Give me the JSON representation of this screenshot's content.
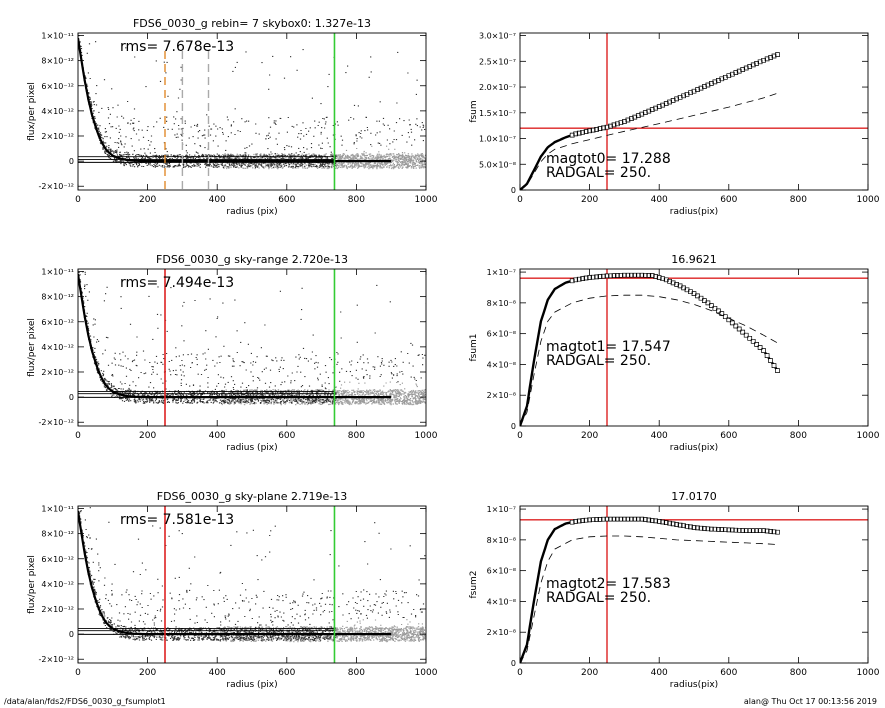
{
  "chart_data": [
    {
      "type": "scatter",
      "title": "FDS6_0030_g rebin= 7    skybox0:  1.327e-13",
      "xlabel": "radius (pix)",
      "ylabel": "flux/per pixel",
      "annotation": "rms= 7.678e-13",
      "xlim": [
        0,
        1000
      ],
      "ylim": [
        -2.3e-12,
        1.02e-11
      ],
      "xticks": [
        "0",
        "200",
        "400",
        "600",
        "800",
        "1000"
      ],
      "yticks": [
        {
          "v": -2e-12,
          "label": "-2×10⁻¹²"
        },
        {
          "v": 0,
          "label": "0"
        },
        {
          "v": 2e-12,
          "label": "2×10⁻¹²"
        },
        {
          "v": 4e-12,
          "label": "4×10⁻¹²"
        },
        {
          "v": 6e-12,
          "label": "6×10⁻¹²"
        },
        {
          "v": 8e-12,
          "label": "8×10⁻¹²"
        },
        {
          "v": 1e-11,
          "label": "1×10⁻¹¹"
        }
      ],
      "hlines": [
        1.327e-13,
        3.5e-13,
        -1e-13
      ],
      "vlines": [
        {
          "x": 250,
          "color": "#e08a2c",
          "style": "dash"
        },
        {
          "x": 300,
          "color": "#aaaaaa",
          "style": "dash"
        },
        {
          "x": 375,
          "color": "#aaaaaa",
          "style": "dash"
        },
        {
          "x": 737,
          "color": "#33cc33",
          "style": "solid"
        }
      ],
      "profile": {
        "x": [
          0,
          10,
          20,
          30,
          40,
          50,
          60,
          70,
          80,
          90,
          100,
          120,
          140,
          160,
          200,
          300,
          400,
          600,
          740,
          900
        ],
        "y": [
          9.8e-12,
          8e-12,
          6.3e-12,
          4.9e-12,
          3.7e-12,
          2.8e-12,
          2e-12,
          1.4e-12,
          9.5e-13,
          6.5e-13,
          4.3e-13,
          2.1e-13,
          9e-14,
          3e-14,
          0,
          0,
          0,
          0,
          0,
          0
        ]
      },
      "scatter_xmax": 1000,
      "gray_from": 740
    },
    {
      "type": "scatter",
      "title": "FDS6_0030_g sky-range  2.720e-13",
      "xlabel": "radius (pix)",
      "ylabel": "flux/per pixel",
      "annotation": "rms= 7.494e-13",
      "xlim": [
        0,
        1000
      ],
      "ylim": [
        -2.3e-12,
        1.02e-11
      ],
      "xticks": [
        "0",
        "200",
        "400",
        "600",
        "800",
        "1000"
      ],
      "yticks": [
        {
          "v": -2e-12,
          "label": "-2×10⁻¹²"
        },
        {
          "v": 0,
          "label": "0"
        },
        {
          "v": 2e-12,
          "label": "2×10⁻¹²"
        },
        {
          "v": 4e-12,
          "label": "4×10⁻¹²"
        },
        {
          "v": 6e-12,
          "label": "6×10⁻¹²"
        },
        {
          "v": 8e-12,
          "label": "8×10⁻¹²"
        },
        {
          "v": 1e-11,
          "label": "1×10⁻¹¹"
        }
      ],
      "hlines": [
        2.72e-13,
        4.5e-13,
        -2e-14
      ],
      "vlines": [
        {
          "x": 250,
          "color": "#dd2222",
          "style": "solid"
        },
        {
          "x": 737,
          "color": "#33cc33",
          "style": "solid"
        }
      ],
      "profile": {
        "x": [
          0,
          10,
          20,
          30,
          40,
          50,
          60,
          70,
          80,
          90,
          100,
          120,
          140,
          160,
          200,
          300,
          400,
          600,
          740,
          900
        ],
        "y": [
          9.8e-12,
          8e-12,
          6.3e-12,
          4.9e-12,
          3.7e-12,
          2.8e-12,
          2e-12,
          1.4e-12,
          9.5e-13,
          6.5e-13,
          4.3e-13,
          2.1e-13,
          9e-14,
          3e-14,
          0,
          0,
          0,
          0,
          0,
          0
        ]
      },
      "scatter_xmax": 1000,
      "gray_from": 740
    },
    {
      "type": "scatter",
      "title": "FDS6_0030_g sky-plane  2.719e-13",
      "xlabel": "radius (pix)",
      "ylabel": "flux/per pixel",
      "annotation": "rms= 7.581e-13",
      "xlim": [
        0,
        1000
      ],
      "ylim": [
        -2.3e-12,
        1.02e-11
      ],
      "xticks": [
        "0",
        "200",
        "400",
        "600",
        "800",
        "1000"
      ],
      "yticks": [
        {
          "v": -2e-12,
          "label": "-2×10⁻¹²"
        },
        {
          "v": 0,
          "label": "0"
        },
        {
          "v": 2e-12,
          "label": "2×10⁻¹²"
        },
        {
          "v": 4e-12,
          "label": "4×10⁻¹²"
        },
        {
          "v": 6e-12,
          "label": "6×10⁻¹²"
        },
        {
          "v": 8e-12,
          "label": "8×10⁻¹²"
        },
        {
          "v": 1e-11,
          "label": "1×10⁻¹¹"
        }
      ],
      "hlines": [
        2.719e-13,
        4.5e-13,
        -2e-14
      ],
      "vlines": [
        {
          "x": 250,
          "color": "#dd2222",
          "style": "solid"
        },
        {
          "x": 737,
          "color": "#33cc33",
          "style": "solid"
        }
      ],
      "profile": {
        "x": [
          0,
          10,
          20,
          30,
          40,
          50,
          60,
          70,
          80,
          90,
          100,
          120,
          140,
          160,
          200,
          300,
          400,
          600,
          740,
          900
        ],
        "y": [
          9.8e-12,
          8e-12,
          6.3e-12,
          4.9e-12,
          3.7e-12,
          2.8e-12,
          2e-12,
          1.4e-12,
          9.5e-13,
          6.5e-13,
          4.3e-13,
          2.1e-13,
          9e-14,
          3e-14,
          0,
          0,
          0,
          0,
          0,
          0
        ]
      },
      "scatter_xmax": 1000,
      "gray_from": 740
    },
    {
      "type": "line",
      "title": "",
      "xlabel": "radius(pix)",
      "ylabel": "fsum",
      "annotation_lines": [
        "magtot0=  17.288",
        "RADGAL=    250."
      ],
      "xlim": [
        0,
        1000
      ],
      "ylim": [
        0,
        3.05e-07
      ],
      "xticks": [
        "0",
        "200",
        "400",
        "600",
        "800",
        "1000"
      ],
      "yticks": [
        {
          "v": 0,
          "label": "0"
        },
        {
          "v": 5e-08,
          "label": "5.0×10⁻⁸"
        },
        {
          "v": 1e-07,
          "label": "1.0×10⁻⁷"
        },
        {
          "v": 1.5e-07,
          "label": "1.5×10⁻⁷"
        },
        {
          "v": 2e-07,
          "label": "2.0×10⁻⁷"
        },
        {
          "v": 2.5e-07,
          "label": "2.5×10⁻⁷"
        },
        {
          "v": 3e-07,
          "label": "3.0×10⁻⁷"
        }
      ],
      "hline": 1.2e-07,
      "vline": 250,
      "series": [
        {
          "style": "squares",
          "x": [
            0,
            20,
            40,
            60,
            80,
            100,
            130,
            160,
            200,
            250,
            300,
            400,
            500,
            600,
            700,
            740
          ],
          "y": [
            0,
            1.2e-08,
            3.8e-08,
            6.5e-08,
            8.3e-08,
            9.3e-08,
            1.02e-07,
            1.09e-07,
            1.15e-07,
            1.22e-07,
            1.33e-07,
            1.62e-07,
            1.92e-07,
            2.22e-07,
            2.52e-07,
            2.63e-07
          ]
        },
        {
          "style": "dash",
          "x": [
            0,
            20,
            40,
            60,
            80,
            100,
            150,
            200,
            250,
            300,
            400,
            500,
            600,
            700,
            740
          ],
          "y": [
            0,
            1e-08,
            3.2e-08,
            5.5e-08,
            7e-08,
            7.9e-08,
            9e-08,
            9.8e-08,
            1.06e-07,
            1.14e-07,
            1.29e-07,
            1.45e-07,
            1.61e-07,
            1.79e-07,
            1.88e-07
          ]
        }
      ]
    },
    {
      "type": "line",
      "title": "16.9621",
      "xlabel": "radius(pix)",
      "ylabel": "fsum1",
      "annotation_lines": [
        "magtot1=  17.547",
        "RADGAL=    250."
      ],
      "xlim": [
        0,
        1000
      ],
      "ylim": [
        0,
        1.02e-07
      ],
      "xticks": [
        "0",
        "200",
        "400",
        "600",
        "800",
        "1000"
      ],
      "yticks": [
        {
          "v": 0,
          "label": "0"
        },
        {
          "v": 2e-08,
          "label": "2×10⁻⁸"
        },
        {
          "v": 4e-08,
          "label": "4×10⁻⁸"
        },
        {
          "v": 6e-08,
          "label": "6×10⁻⁸"
        },
        {
          "v": 8e-08,
          "label": "8×10⁻⁸"
        },
        {
          "v": 1e-07,
          "label": "1×10⁻⁷"
        }
      ],
      "hline": 9.6e-08,
      "vline": 250,
      "series": [
        {
          "style": "squares",
          "x": [
            0,
            20,
            40,
            60,
            80,
            100,
            130,
            160,
            200,
            250,
            300,
            350,
            380,
            420,
            460,
            500,
            540,
            580,
            620,
            660,
            700,
            740
          ],
          "y": [
            0,
            1.3e-08,
            4.2e-08,
            6.8e-08,
            8.2e-08,
            8.9e-08,
            9.3e-08,
            9.5e-08,
            9.65e-08,
            9.75e-08,
            9.8e-08,
            9.8e-08,
            9.78e-08,
            9.5e-08,
            9.1e-08,
            8.6e-08,
            8e-08,
            7.3e-08,
            6.5e-08,
            5.7e-08,
            4.9e-08,
            3.6e-08
          ]
        },
        {
          "style": "dash",
          "x": [
            0,
            20,
            40,
            60,
            80,
            100,
            150,
            200,
            250,
            300,
            350,
            400,
            450,
            500,
            550,
            600,
            650,
            700,
            740
          ],
          "y": [
            0,
            9e-09,
            3.3e-08,
            5.5e-08,
            6.8e-08,
            7.4e-08,
            8e-08,
            8.3e-08,
            8.45e-08,
            8.5e-08,
            8.5e-08,
            8.4e-08,
            8.2e-08,
            7.9e-08,
            7.5e-08,
            7e-08,
            6.5e-08,
            5.9e-08,
            5.4e-08
          ]
        }
      ]
    },
    {
      "type": "line",
      "title": "17.0170",
      "xlabel": "radius(pix)",
      "ylabel": "fsum2",
      "annotation_lines": [
        "magtot2=  17.583",
        "RADGAL=    250."
      ],
      "xlim": [
        0,
        1000
      ],
      "ylim": [
        0,
        1.02e-07
      ],
      "xticks": [
        "0",
        "200",
        "400",
        "600",
        "800",
        "1000"
      ],
      "yticks": [
        {
          "v": 0,
          "label": "0"
        },
        {
          "v": 2e-08,
          "label": "2×10⁻⁸"
        },
        {
          "v": 4e-08,
          "label": "4×10⁻⁸"
        },
        {
          "v": 6e-08,
          "label": "6×10⁻⁸"
        },
        {
          "v": 8e-08,
          "label": "8×10⁻⁸"
        },
        {
          "v": 1e-07,
          "label": "1×10⁻⁷"
        }
      ],
      "hline": 9.3e-08,
      "vline": 250,
      "series": [
        {
          "style": "squares",
          "x": [
            0,
            20,
            40,
            60,
            80,
            100,
            130,
            160,
            200,
            250,
            300,
            350,
            400,
            450,
            500,
            550,
            600,
            650,
            700,
            740
          ],
          "y": [
            0,
            1.2e-08,
            4e-08,
            6.6e-08,
            8e-08,
            8.7e-08,
            9.05e-08,
            9.2e-08,
            9.3e-08,
            9.35e-08,
            9.35e-08,
            9.35e-08,
            9.2e-08,
            9e-08,
            8.8e-08,
            8.7e-08,
            8.65e-08,
            8.6e-08,
            8.6e-08,
            8.5e-08
          ]
        },
        {
          "style": "dash",
          "x": [
            0,
            20,
            40,
            60,
            80,
            100,
            150,
            200,
            250,
            300,
            350,
            400,
            450,
            500,
            550,
            600,
            650,
            700,
            740
          ],
          "y": [
            0,
            8e-09,
            3e-08,
            5.2e-08,
            6.6e-08,
            7.4e-08,
            8e-08,
            8.2e-08,
            8.25e-08,
            8.25e-08,
            8.2e-08,
            8.1e-08,
            8e-08,
            7.95e-08,
            7.9e-08,
            7.85e-08,
            7.8e-08,
            7.75e-08,
            7.7e-08
          ]
        }
      ]
    }
  ],
  "footer": {
    "left": "/data/alan/fds2/FDS6_0030_g_fsumplot1",
    "right": "alan@  Thu Oct 17 00:13:56 2019"
  }
}
